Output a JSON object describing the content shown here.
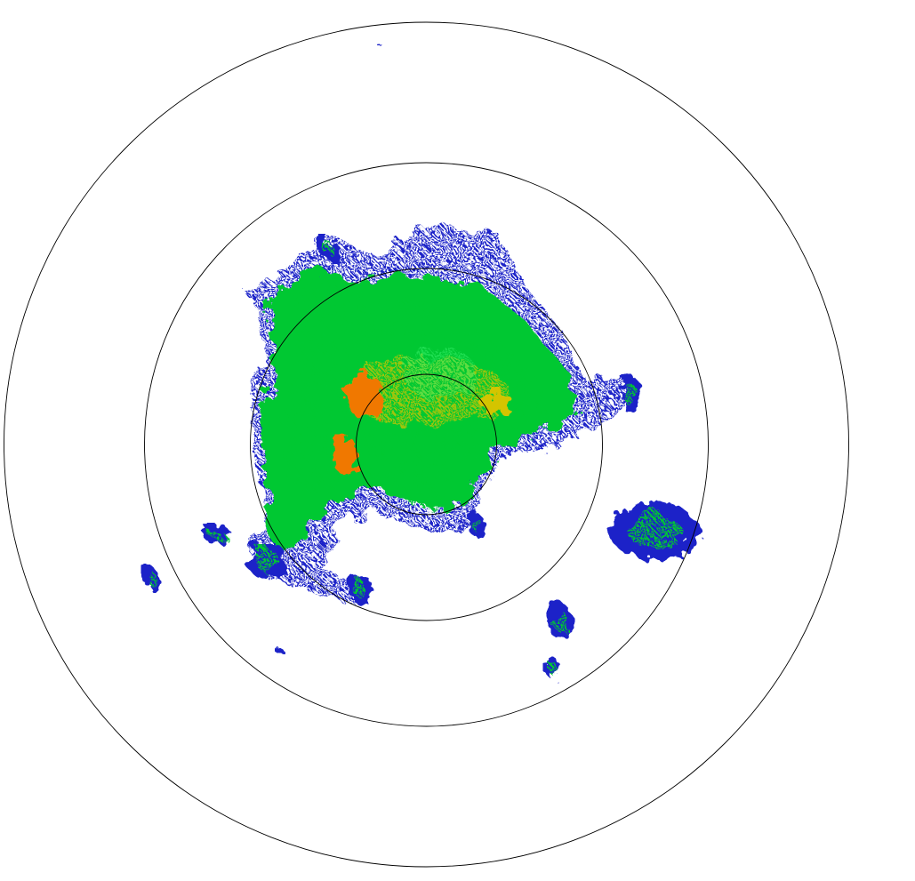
{
  "display": {
    "type": "radar-ppi-reflectivity",
    "range_ring_count": 4,
    "ring_color": "#000000",
    "background": "#ffffff"
  },
  "reflectivity_colors": {
    "weak": "#1a22c8",
    "light": "#00aaee",
    "moderate": "#00c832",
    "bright": "#33ee66",
    "heavy": "#d4c400",
    "intense": "#f07800"
  }
}
